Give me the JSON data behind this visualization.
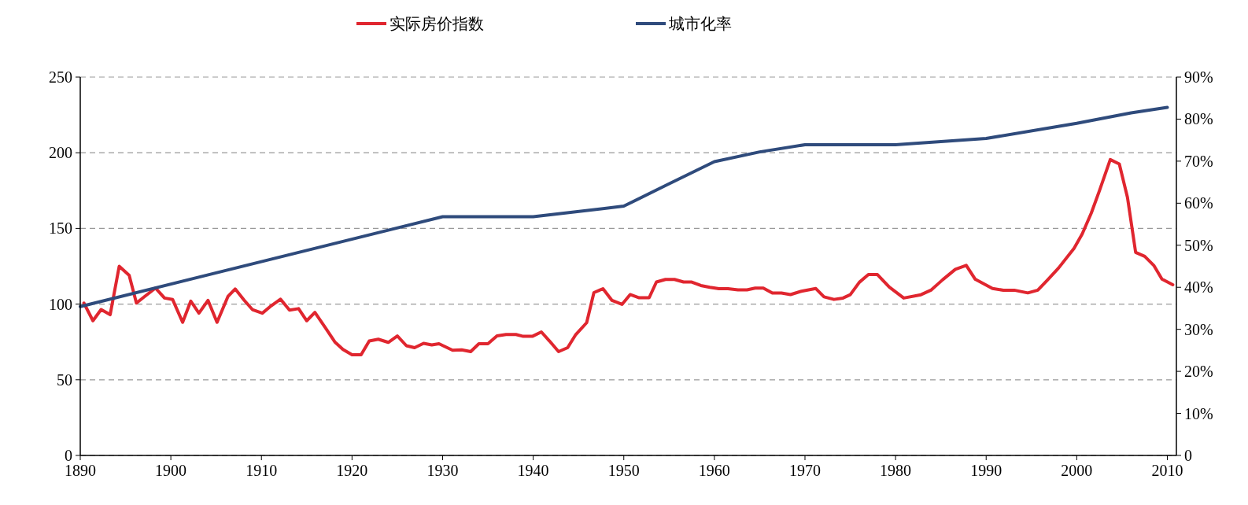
{
  "chart_data": {
    "type": "line",
    "xlim": [
      1890,
      2011
    ],
    "xticks": [
      1890,
      1900,
      1910,
      1920,
      1930,
      1940,
      1950,
      1960,
      1970,
      1980,
      1990,
      2000,
      2010
    ],
    "ylim": [
      0,
      250
    ],
    "yticks": [
      0,
      50,
      100,
      150,
      200,
      250
    ],
    "y2lim": [
      0,
      90
    ],
    "y2ticks": [
      {
        "value": 0,
        "label": "0"
      },
      {
        "value": 10,
        "label": "10%"
      },
      {
        "value": 20,
        "label": "20%"
      },
      {
        "value": 30,
        "label": "30%"
      },
      {
        "value": 40,
        "label": "40%"
      },
      {
        "value": 50,
        "label": "50%"
      },
      {
        "value": 60,
        "label": "60%"
      },
      {
        "value": 70,
        "label": "70%"
      },
      {
        "value": 80,
        "label": "80%"
      },
      {
        "value": 90,
        "label": "90%"
      }
    ],
    "grid": "y",
    "legend": "top",
    "marker": "none",
    "line_style": "solid",
    "series": [
      {
        "name": "实际房价指数",
        "color": "#e0262f",
        "x": [
          1890.4,
          1891.4,
          1892.3,
          1893.3,
          1894.3,
          1895.4,
          1896.2,
          1897.1,
          1898.3,
          1899.3,
          1900.2,
          1901.3,
          1902.2,
          1903.1,
          1904.1,
          1905.1,
          1906.3,
          1907.1,
          1908.1,
          1909,
          1910.1,
          1911.1,
          1912.1,
          1913.1,
          1914.1,
          1915,
          1915.9,
          1917.1,
          1918.1,
          1919,
          1920,
          1921,
          1921.9,
          1922.9,
          1924,
          1925,
          1926,
          1926.9,
          1927.9,
          1928.8,
          1929.6,
          1931.1,
          1932.1,
          1933.1,
          1934,
          1935,
          1936,
          1937,
          1938.1,
          1938.9,
          1939.9,
          1940.9,
          1941.8,
          1942.8,
          1943.8,
          1944.7,
          1945.9,
          1946.7,
          1947.7,
          1948.7,
          1949.8,
          1950.7,
          1951.7,
          1952.8,
          1953.6,
          1954.6,
          1955.6,
          1956.6,
          1957.5,
          1958.5,
          1959.5,
          1960.5,
          1961.5,
          1962.6,
          1963.6,
          1964.5,
          1965.4,
          1966.4,
          1967.4,
          1968.4,
          1969.6,
          1971.2,
          1972.1,
          1973.2,
          1974.2,
          1975,
          1976,
          1977,
          1978,
          1979.3,
          1980.9,
          1982.8,
          1983.9,
          1985.2,
          1986.6,
          1987.8,
          1988.8,
          1990.7,
          1991.9,
          1993.1,
          1994.6,
          1995.7,
          1996.8,
          1998,
          1999.7,
          2000.6,
          2001.6,
          2002.5,
          2003.7,
          2004.7,
          2005.6,
          2006.5,
          2007.5,
          2008.5,
          2009.4,
          2010.6
        ],
        "values": [
          100.7,
          89,
          96.4,
          93,
          125,
          119,
          100.7,
          105,
          110.6,
          104,
          103,
          88,
          102,
          94,
          102.5,
          88,
          105,
          110,
          102.5,
          96.4,
          94,
          99,
          103.3,
          96,
          97,
          89,
          94.5,
          84,
          75,
          70,
          66.5,
          66.5,
          75.6,
          76.8,
          74.7,
          79,
          72.5,
          71.2,
          74.1,
          73,
          73.8,
          69.5,
          69.8,
          68.6,
          73.8,
          73.8,
          79,
          79.9,
          79.9,
          78.7,
          78.7,
          81.6,
          75.6,
          68.6,
          71.2,
          79.9,
          87.7,
          107.6,
          110.2,
          102.4,
          99.8,
          106.3,
          104.2,
          104.2,
          114.6,
          116.3,
          116.3,
          114.6,
          114.6,
          112.3,
          111.1,
          110.2,
          110.2,
          109.4,
          109.4,
          110.6,
          110.6,
          107.3,
          107.3,
          106.3,
          108.5,
          110.3,
          104.8,
          103.1,
          104,
          106.2,
          114.4,
          119.5,
          119.5,
          111.3,
          104,
          106.2,
          109.2,
          116.1,
          123,
          125.6,
          116.4,
          110.3,
          109.2,
          109.2,
          107.4,
          109.2,
          116.1,
          123.9,
          136.8,
          146.3,
          160.1,
          174.8,
          195.5,
          192.6,
          170.5,
          134.2,
          131.6,
          125.6,
          116.6,
          112.8
        ]
      },
      {
        "name": "城市化率",
        "color": "#2f4b7c",
        "axis": "y2",
        "x": [
          1890,
          1930,
          1940,
          1950,
          1954.8,
          1960,
          1965,
          1970,
          1980,
          1990,
          2000,
          2006,
          2010
        ],
        "values": [
          35.4,
          56.8,
          56.8,
          59.3,
          64.4,
          69.9,
          72.2,
          73.9,
          73.9,
          75.4,
          79.0,
          81.5,
          82.8
        ]
      }
    ]
  }
}
